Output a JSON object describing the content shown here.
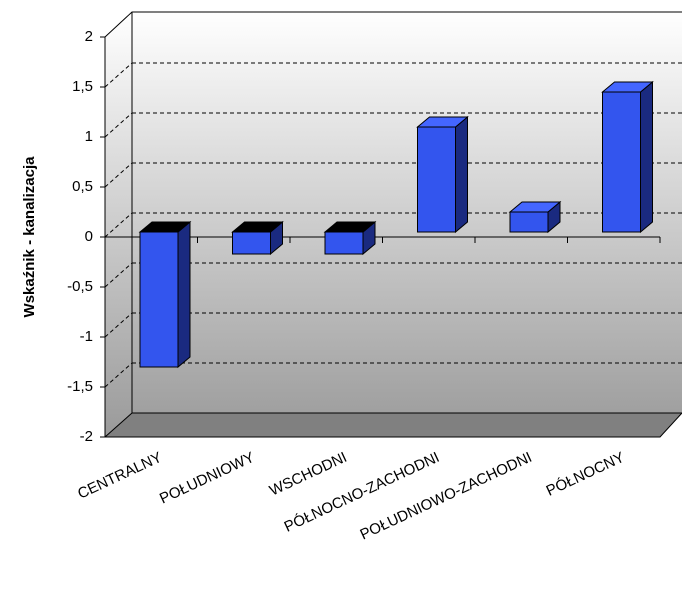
{
  "chart_data": {
    "type": "bar3d",
    "y_label": "Wskaźnik - kanalizacja",
    "categories": [
      "CENTRALNY",
      "POŁUDNIOWY",
      "WSCHODNI",
      "PÓŁNOCNO-ZACHODNI",
      "POŁUDNIOWO-ZACHODNI",
      "PÓŁNOCNY"
    ],
    "values": [
      -1.35,
      -0.22,
      -0.22,
      1.05,
      0.2,
      1.4
    ],
    "color": "#3355ee",
    "ylim": [
      -2,
      2
    ],
    "yticks": [
      -2,
      {
        "value": -1.5,
        "label": "-1,5"
      },
      -1,
      {
        "value": -0.5,
        "label": "-0,5"
      },
      0,
      {
        "value": 0.5,
        "label": "0,5"
      },
      1,
      {
        "value": 1.5,
        "label": "1,5"
      },
      2
    ],
    "grid": true
  }
}
